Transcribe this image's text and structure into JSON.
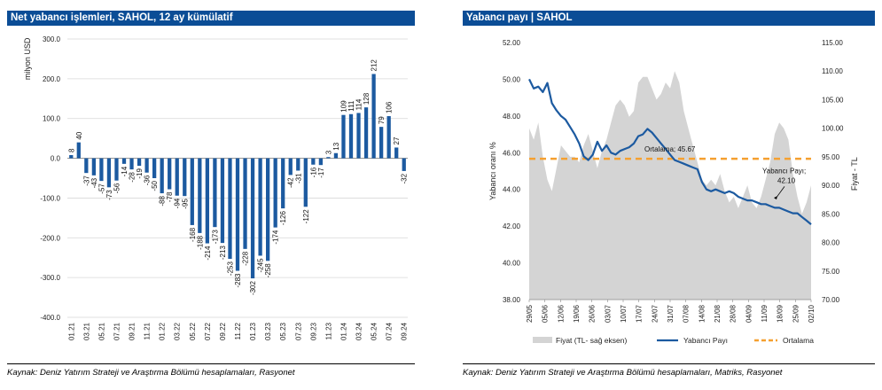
{
  "panels": {
    "left": {
      "title": "Net yabancı işlemleri, SAHOL, 12 ay kümülatif",
      "source": "Kaynak: Deniz Yatırım Strateji ve Araştırma Bölümü hesaplamaları, Rasyonet"
    },
    "right": {
      "title": "Yabancı payı | SAHOL",
      "source": "Kaynak: Deniz Yatırım Strateji ve Araştırma Bölümü hesaplamaları, Matriks, Rasyonet"
    }
  },
  "colors": {
    "header_bg": "#0b4d96",
    "bar": "#1c5aa0",
    "line": "#1c5aa0",
    "area": "#d4d4d4",
    "avg": "#f5a030"
  },
  "chart_data": [
    {
      "type": "bar",
      "title": "Net yabancı işlemleri, SAHOL, 12 ay kümülatif",
      "ylabel": "milyon USD",
      "ylim": [
        -400,
        300
      ],
      "yticks": [
        "300.0",
        "200.0",
        "100.0",
        "0.0",
        "-100.0",
        "-200.0",
        "-300.0",
        "-400.0"
      ],
      "values": [
        8,
        40,
        -37,
        -43,
        -57,
        -73,
        -56,
        -14,
        -28,
        -19,
        -36,
        -50,
        -88,
        -78,
        -94,
        -95,
        -168,
        -188,
        -214,
        -173,
        -213,
        -253,
        -283,
        -228,
        -302,
        -245,
        -258,
        -174,
        -126,
        -42,
        -31,
        -122,
        -16,
        -17,
        3,
        13,
        109,
        111,
        114,
        128,
        212,
        79,
        106,
        27,
        -32
      ],
      "data_labels": [
        "8",
        "40",
        "-37",
        "-43",
        "-57",
        "-73",
        "-56",
        "-14",
        "-28",
        "-19",
        "-36",
        "-50",
        "-88",
        "-78",
        "-94",
        "-95",
        "-168",
        "-188",
        "-214",
        "-173",
        "-213",
        "-253",
        "-283",
        "-228",
        "-302",
        "-245",
        "-258",
        "-174",
        "-126",
        "-42",
        "-31",
        "-122",
        "-16",
        "-17",
        "3",
        "13",
        "109",
        "111",
        "114",
        "128",
        "212",
        "79",
        "106",
        "27",
        "-32"
      ],
      "x_tick_labels": [
        "01.21",
        "03.21",
        "05.21",
        "07.21",
        "09.21",
        "11.21",
        "01.22",
        "03.22",
        "05.22",
        "07.22",
        "09.22",
        "11.22",
        "01.23",
        "03.23",
        "05.23",
        "07.23",
        "09.23",
        "11.23",
        "01.24",
        "03.24",
        "05.24",
        "07.24",
        "09.24"
      ]
    },
    {
      "type": "line",
      "title": "Yabancı payı | SAHOL",
      "ylabel_left": "Yabancı oranı %",
      "ylabel_right": "Fiyat - TL",
      "ylim_left": [
        38,
        52
      ],
      "ylim_right": [
        70,
        115
      ],
      "yticks_left": [
        "52.00",
        "50.00",
        "48.00",
        "46.00",
        "44.00",
        "42.00",
        "40.00",
        "38.00"
      ],
      "yticks_right": [
        "115.00",
        "110.00",
        "105.00",
        "100.00",
        "95.00",
        "90.00",
        "85.00",
        "80.00",
        "75.00",
        "70.00"
      ],
      "x_tick_labels": [
        "29/05",
        "05/06",
        "12/06",
        "19/06",
        "26/06",
        "03/07",
        "10/07",
        "17/07",
        "24/07",
        "31/07",
        "07/08",
        "14/08",
        "21/08",
        "28/08",
        "04/09",
        "11/09",
        "18/09",
        "25/09",
        "02/10"
      ],
      "series": [
        {
          "name": "Fiyat (TL- sağ eksen)",
          "type": "area",
          "axis": "right",
          "values": [
            100,
            98,
            101,
            95,
            91,
            89,
            93,
            97,
            96,
            95,
            95,
            94,
            97,
            99,
            96,
            93,
            96,
            98,
            101,
            104,
            105,
            104,
            102,
            103,
            108,
            109,
            109,
            107,
            105,
            106,
            108,
            107,
            110,
            108,
            103,
            100,
            97,
            94,
            91,
            90,
            91,
            90,
            92,
            89,
            87,
            88,
            86,
            88,
            90,
            87,
            86,
            88,
            91,
            94,
            99,
            101,
            100,
            98,
            92,
            88,
            85,
            87,
            90
          ]
        },
        {
          "name": "Yabancı Payı",
          "type": "line",
          "axis": "left",
          "values": [
            50.0,
            49.5,
            49.6,
            49.3,
            49.8,
            48.7,
            48.3,
            48.0,
            47.8,
            47.4,
            47.0,
            46.5,
            45.8,
            45.6,
            45.9,
            46.6,
            46.1,
            46.4,
            46.0,
            45.9,
            46.1,
            46.2,
            46.3,
            46.5,
            46.9,
            47.0,
            47.3,
            47.1,
            46.8,
            46.5,
            46.2,
            45.9,
            45.6,
            45.5,
            45.4,
            45.3,
            45.2,
            45.1,
            44.4,
            44.0,
            43.9,
            44.0,
            43.9,
            43.8,
            43.9,
            43.8,
            43.6,
            43.5,
            43.4,
            43.4,
            43.3,
            43.2,
            43.2,
            43.1,
            43.0,
            43.0,
            42.9,
            42.8,
            42.7,
            42.7,
            42.5,
            42.3,
            42.1
          ]
        },
        {
          "name": "Ortalama",
          "type": "line",
          "axis": "left",
          "value": 45.67
        }
      ],
      "annotations": [
        {
          "text": "Ortalama; 45.67"
        },
        {
          "text_line1": "Yabancı Payı;",
          "text_line2": "42.10"
        }
      ],
      "legend": [
        "Fiyat (TL- sağ eksen)",
        "Yabancı Payı",
        "Ortalama"
      ]
    }
  ]
}
